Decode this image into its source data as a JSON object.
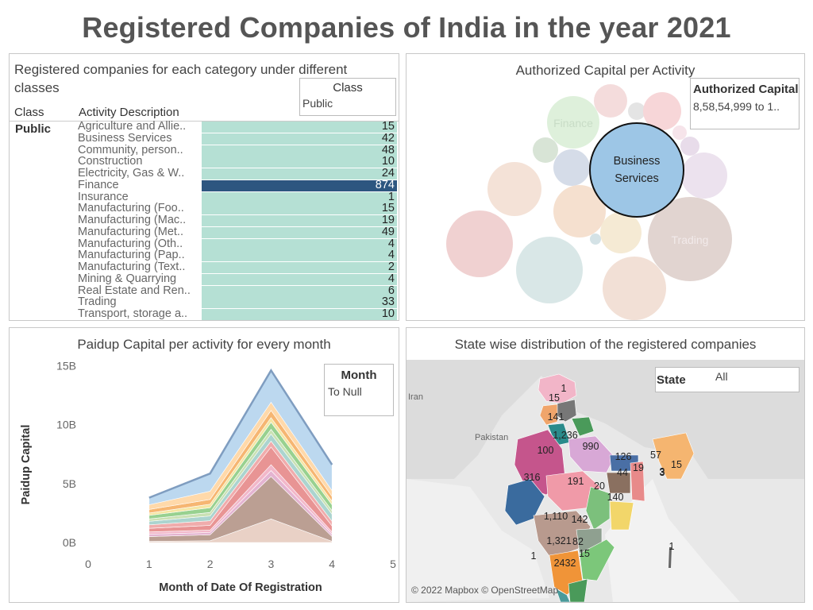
{
  "page_title": "Registered Companies of India in the year 2021",
  "panel_class": {
    "title": "Registered companies for each category under different classes",
    "filter_label": "Class",
    "filter_value": "Public",
    "col_class": "Class",
    "col_activity": "Activity Description",
    "class_value": "Public"
  },
  "panel_bubble": {
    "title": "Authorized Capital per Activity",
    "filter_label": "Authorized Capital",
    "filter_value": "8,58,54,999 to 1..",
    "bubble_labels": {
      "main": "Business Services",
      "finance": "Finance",
      "trading": "Trading"
    }
  },
  "panel_area": {
    "title": "Paidup Capital per activity for every month",
    "filter_label": "Month",
    "filter_value": "To Null"
  },
  "panel_map": {
    "title": "State wise distribution of the registered companies",
    "filter_label": "State",
    "filter_value": "All",
    "attribution": "© 2022 Mapbox © OpenStreetMap",
    "place_labels": [
      "Iran",
      "Pakistan"
    ],
    "state_values": [
      "1",
      "15",
      "141",
      "1,236",
      "990",
      "100",
      "126",
      "57",
      "3",
      "15",
      "19",
      "44",
      "3",
      "316",
      "191",
      "20",
      "140",
      "1,110",
      "142",
      "1,321",
      "82",
      "1",
      "15",
      "243",
      "2",
      "1"
    ]
  },
  "chart_data": [
    {
      "type": "bar",
      "title": "Registered companies for each category under different classes",
      "categories": [
        "Agriculture and Allie..",
        "Business Services",
        "Community, person..",
        "Construction",
        "Electricity, Gas & W..",
        "Finance",
        "Insurance",
        "Manufacturing (Foo..",
        "Manufacturing (Mac..",
        "Manufacturing (Met..",
        "Manufacturing (Oth..",
        "Manufacturing (Pap..",
        "Manufacturing (Text..",
        "Mining & Quarrying",
        "Real Estate and Ren..",
        "Trading",
        "Transport, storage a.."
      ],
      "values": [
        15,
        42,
        48,
        10,
        24,
        874,
        1,
        15,
        19,
        49,
        4,
        4,
        2,
        4,
        6,
        33,
        10
      ],
      "highlight": "Finance",
      "colors": {
        "bar": "#b5e0d4",
        "highlight": "#2d5680"
      }
    },
    {
      "type": "area",
      "title": "Paidup Capital per activity for every month",
      "xlabel": "Month of Date Of Registration",
      "ylabel": "Paidup Capital",
      "x": [
        1,
        2,
        3,
        4
      ],
      "xticks": [
        "0",
        "1",
        "2",
        "3",
        "4",
        "5"
      ],
      "yticks": [
        "0B",
        "5B",
        "10B",
        "15B"
      ],
      "xlim": [
        0,
        5
      ],
      "ylim": [
        0,
        15.5
      ],
      "stack_colors": [
        "#e8cfc4",
        "#b89a8e",
        "#e3b1cf",
        "#f2b5c8",
        "#e78f8f",
        "#f0a8a8",
        "#a7d2cd",
        "#c8e0b0",
        "#93cf8b",
        "#f5e5a0",
        "#f6b36b",
        "#ffd7a6",
        "#b9d6ef"
      ],
      "stacks": [
        [
          0.1,
          0.15,
          2.0,
          0.1
        ],
        [
          0.4,
          0.5,
          3.6,
          0.4
        ],
        [
          0.2,
          0.2,
          0.5,
          0.2
        ],
        [
          0.2,
          0.2,
          0.5,
          0.2
        ],
        [
          0.3,
          0.4,
          1.5,
          0.5
        ],
        [
          0.3,
          0.4,
          0.5,
          0.4
        ],
        [
          0.3,
          0.4,
          0.6,
          0.6
        ],
        [
          0.2,
          0.3,
          0.4,
          0.3
        ],
        [
          0.3,
          0.4,
          0.6,
          0.5
        ],
        [
          0.2,
          0.3,
          0.4,
          0.3
        ],
        [
          0.3,
          0.4,
          0.6,
          0.4
        ],
        [
          0.4,
          0.7,
          0.7,
          0.5
        ],
        [
          0.6,
          1.5,
          2.7,
          2.2
        ]
      ]
    }
  ]
}
